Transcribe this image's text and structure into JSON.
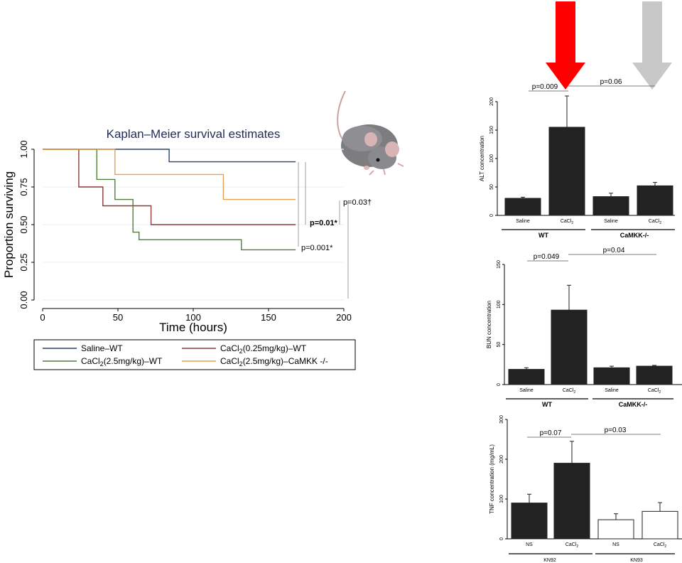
{
  "chart_data": [
    {
      "type": "line",
      "title": "Kaplan–Meier survival estimates",
      "xlabel": "Time (hours)",
      "ylabel": "Proportion surviving",
      "xlim": [
        0,
        200
      ],
      "ylim": [
        0,
        1
      ],
      "x_ticks": [
        "0",
        "50",
        "100",
        "150",
        "200"
      ],
      "y_ticks": [
        "0.00",
        "0.25",
        "0.50",
        "0.75",
        "1.00"
      ],
      "legend_position": "bottom",
      "series": [
        {
          "name": "Saline–WT",
          "color": "#2d4468",
          "steps": [
            [
              0,
              1.0
            ],
            [
              84,
              1.0
            ],
            [
              84,
              0.917
            ],
            [
              168,
              0.917
            ]
          ]
        },
        {
          "name": "CaCl2(0.25mg/kg)–WT",
          "color": "#8b3a3a",
          "steps": [
            [
              0,
              1.0
            ],
            [
              24,
              1.0
            ],
            [
              24,
              0.75
            ],
            [
              40,
              0.75
            ],
            [
              40,
              0.625
            ],
            [
              72,
              0.625
            ],
            [
              72,
              0.5
            ],
            [
              168,
              0.5
            ]
          ]
        },
        {
          "name": "CaCl2(2.5mg/kg)–WT",
          "color": "#4f7f3a",
          "steps": [
            [
              0,
              1.0
            ],
            [
              36,
              1.0
            ],
            [
              36,
              0.8
            ],
            [
              48,
              0.8
            ],
            [
              48,
              0.667
            ],
            [
              60,
              0.667
            ],
            [
              60,
              0.45
            ],
            [
              64,
              0.45
            ],
            [
              64,
              0.4
            ],
            [
              132,
              0.4
            ],
            [
              132,
              0.333
            ],
            [
              168,
              0.333
            ]
          ]
        },
        {
          "name": "CaCl2(2.5mg/kg)–CaMKK -/-",
          "color": "#e8a050",
          "steps": [
            [
              0,
              1.0
            ],
            [
              48,
              1.0
            ],
            [
              48,
              0.833
            ],
            [
              120,
              0.833
            ],
            [
              120,
              0.667
            ],
            [
              168,
              0.667
            ]
          ]
        }
      ],
      "legend": [
        {
          "label": "Saline–WT",
          "sub": ""
        },
        {
          "label": "CaCl",
          "sub": "2",
          "rest": "(0.25mg/kg)–WT"
        },
        {
          "label": "CaCl",
          "sub": "2",
          "rest": "(2.5mg/kg)–WT"
        },
        {
          "label": "CaCl",
          "sub": "2",
          "rest": "(2.5mg/kg)–CaMKK -/-"
        }
      ],
      "annotations": [
        "p=0.01*",
        "p=0.001*",
        "p=0.03†"
      ]
    },
    {
      "type": "bar",
      "ylabel": "ALT concentration",
      "ylim": [
        0,
        200
      ],
      "y_ticks": [
        "0",
        "50",
        "100",
        "150",
        "200"
      ],
      "categories": [
        "Saline",
        "CaCl2",
        "Saline",
        "CaCl2"
      ],
      "values": [
        30,
        155,
        33,
        52
      ],
      "errors": [
        2,
        55,
        6,
        6
      ],
      "groups": [
        "WT",
        "CaMKK-/-"
      ],
      "p_values": [
        "p=0.009",
        "p=0.06"
      ]
    },
    {
      "type": "bar",
      "ylabel": "BUN concentration",
      "ylim": [
        0,
        150
      ],
      "y_ticks": [
        "0",
        "50",
        "100",
        "150"
      ],
      "categories": [
        "Saline",
        "CaCl2",
        "Saline",
        "CaCl2"
      ],
      "values": [
        19,
        93,
        21,
        23
      ],
      "errors": [
        2,
        31,
        2,
        1
      ],
      "groups": [
        "WT",
        "CaMKK-/-"
      ],
      "p_values": [
        "p=0.049",
        "p=0.04"
      ]
    },
    {
      "type": "bar",
      "ylabel": "TNF concentration (mg/mL)",
      "ylim": [
        0,
        300
      ],
      "y_ticks": [
        "0",
        "100",
        "200",
        "300"
      ],
      "categories": [
        "NS",
        "CaCl2",
        "NS",
        "CaCl2"
      ],
      "values": [
        90,
        190,
        48,
        69
      ],
      "errors": [
        22,
        55,
        15,
        22
      ],
      "fills": [
        "#222222",
        "#222222",
        "#ffffff",
        "#ffffff"
      ],
      "groups": [
        "KN92",
        "KN93"
      ],
      "p_values": [
        "p=0.07",
        "p=0.03"
      ]
    }
  ],
  "arrows": {
    "left_color": "#ff0000",
    "right_color": "#c8c8c8"
  },
  "image": {
    "name": "mouse-illustration"
  }
}
